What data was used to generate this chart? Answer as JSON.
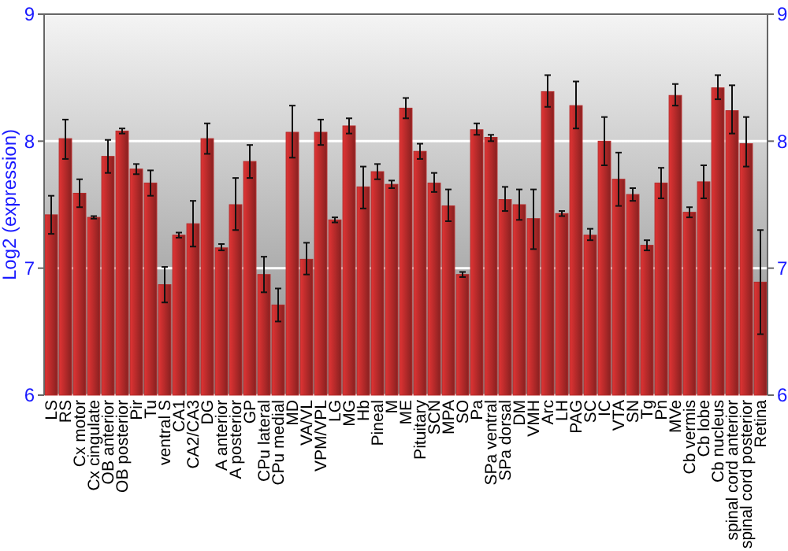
{
  "chart_data": {
    "type": "bar",
    "ylabel": "Log2 (expression)",
    "categories": [
      "LS",
      "RS",
      "Cx motor",
      "Cx cingulate",
      "OB anterior",
      "OB posterior",
      "Pir",
      "Tu",
      "ventral S",
      "CA1",
      "CA2/CA3",
      "DG",
      "A anterior",
      "A posterior",
      "GP",
      "CPu lateral",
      "CPu medial",
      "MD",
      "VA/VL",
      "VPM/VPL",
      "LG",
      "MG",
      "Hb",
      "Pineal",
      "M",
      "ME",
      "Pituitary",
      "SCN",
      "MPA",
      "SO",
      "Pa",
      "SPa ventral",
      "SPa dorsal",
      "DM",
      "VMH",
      "Arc",
      "LH",
      "PAG",
      "SC",
      "IC",
      "VTA",
      "SN",
      "Tg",
      "Pn",
      "MVe",
      "Cb vermis",
      "Cb lobe",
      "Cb nucleus",
      "spinal cord anterior",
      "spinal cord posterior",
      "Retina"
    ],
    "values": [
      7.42,
      8.02,
      7.59,
      7.4,
      7.88,
      8.08,
      7.78,
      7.67,
      6.87,
      7.26,
      7.35,
      8.02,
      7.16,
      7.5,
      7.84,
      6.95,
      6.71,
      8.07,
      7.07,
      8.07,
      7.38,
      8.12,
      7.64,
      7.76,
      7.66,
      8.26,
      7.92,
      7.67,
      7.49,
      6.95,
      8.09,
      8.03,
      7.54,
      7.5,
      7.39,
      8.39,
      7.43,
      8.28,
      7.26,
      8.0,
      7.7,
      7.58,
      7.18,
      7.67,
      8.36,
      7.44,
      7.68,
      8.42,
      8.24,
      7.98,
      6.89
    ],
    "errors": [
      [
        7.27,
        7.57
      ],
      [
        7.86,
        8.17
      ],
      [
        7.48,
        7.7
      ],
      [
        7.39,
        7.41
      ],
      [
        7.75,
        8.01
      ],
      [
        8.06,
        8.1
      ],
      [
        7.74,
        7.82
      ],
      [
        7.57,
        7.77
      ],
      [
        6.73,
        7.01
      ],
      [
        7.24,
        7.28
      ],
      [
        7.17,
        7.53
      ],
      [
        7.9,
        8.14
      ],
      [
        7.14,
        7.19
      ],
      [
        7.3,
        7.71
      ],
      [
        7.71,
        7.97
      ],
      [
        6.81,
        7.09
      ],
      [
        6.58,
        6.84
      ],
      [
        7.87,
        8.28
      ],
      [
        6.95,
        7.2
      ],
      [
        7.97,
        8.17
      ],
      [
        7.36,
        7.4
      ],
      [
        8.06,
        8.18
      ],
      [
        7.47,
        7.8
      ],
      [
        7.7,
        7.82
      ],
      [
        7.63,
        7.69
      ],
      [
        8.18,
        8.34
      ],
      [
        7.86,
        7.98
      ],
      [
        7.6,
        7.75
      ],
      [
        7.37,
        7.62
      ],
      [
        6.93,
        6.97
      ],
      [
        8.05,
        8.14
      ],
      [
        8.0,
        8.05
      ],
      [
        7.45,
        7.64
      ],
      [
        7.38,
        7.62
      ],
      [
        7.15,
        7.62
      ],
      [
        8.27,
        8.52
      ],
      [
        7.41,
        7.45
      ],
      [
        8.1,
        8.47
      ],
      [
        7.22,
        7.31
      ],
      [
        7.81,
        8.19
      ],
      [
        7.49,
        7.91
      ],
      [
        7.53,
        7.63
      ],
      [
        7.14,
        7.22
      ],
      [
        7.55,
        7.79
      ],
      [
        8.28,
        8.45
      ],
      [
        7.4,
        7.48
      ],
      [
        7.55,
        7.81
      ],
      [
        8.33,
        8.52
      ],
      [
        8.06,
        8.44
      ],
      [
        7.8,
        8.19
      ],
      [
        6.48,
        7.3
      ]
    ],
    "color": "#b52a2a",
    "ylim": [
      6,
      9
    ],
    "yticks": [
      6,
      7,
      8,
      9
    ],
    "y2lim": [
      6,
      9
    ],
    "y2ticks": [
      6,
      7,
      8,
      9
    ],
    "grid": "y"
  }
}
